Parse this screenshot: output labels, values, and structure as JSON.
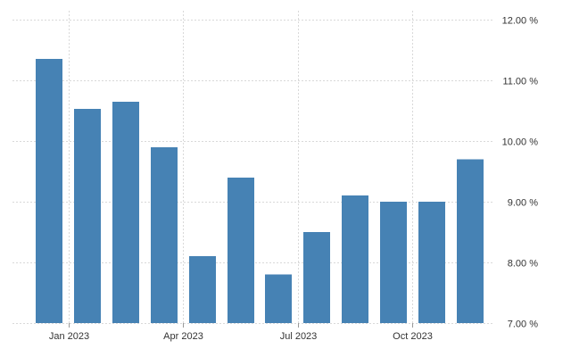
{
  "chart_data": {
    "type": "bar",
    "categories": [
      "2022-12",
      "2023-01",
      "2023-02",
      "2023-03",
      "2023-04",
      "2023-05",
      "2023-06",
      "2023-07",
      "2023-08",
      "2023-09",
      "2023-10",
      "2023-11"
    ],
    "values": [
      11.35,
      10.53,
      10.65,
      9.9,
      8.1,
      9.4,
      7.8,
      8.5,
      9.1,
      9.0,
      9.0,
      9.7
    ],
    "ylim": [
      7.0,
      12.0
    ],
    "yticks": [
      7.0,
      8.0,
      9.0,
      10.0,
      11.0,
      12.0
    ],
    "ytick_labels": [
      "7.00 %",
      "8.00 %",
      "9.00 %",
      "10.00 %",
      "11.00 %",
      "12.00 %"
    ],
    "xtick_labels": [
      {
        "category": "2023-01",
        "label": "Jan 2023"
      },
      {
        "category": "2023-04",
        "label": "Apr 2023"
      },
      {
        "category": "2023-07",
        "label": "Jul 2023"
      },
      {
        "category": "2023-10",
        "label": "Oct 2023"
      }
    ],
    "bar_color": "#4682b4",
    "grid": true,
    "y_axis_position": "right"
  }
}
